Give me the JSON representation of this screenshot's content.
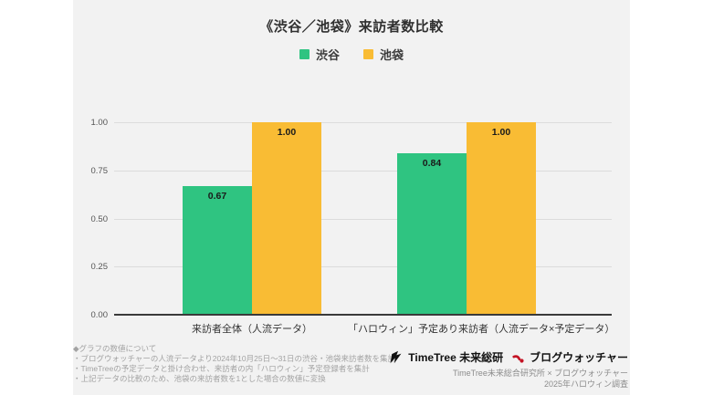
{
  "page": {
    "background": "#ffffff",
    "slide_background": "#f2f2f2"
  },
  "chart_data": {
    "type": "bar",
    "title": "《渋谷／池袋》来訪者数比較",
    "categories": [
      "来訪者全体（人流データ）",
      "「ハロウィン」予定あり来訪者（人流データ×予定データ）"
    ],
    "series": [
      {
        "name": "渋谷",
        "color": "#2fc481",
        "values": [
          0.67,
          0.84
        ],
        "labels": [
          "0.67",
          "0.84"
        ]
      },
      {
        "name": "池袋",
        "color": "#f9bc34",
        "values": [
          1.0,
          1.0
        ],
        "labels": [
          "1.00",
          "1.00"
        ]
      }
    ],
    "ylim": [
      0,
      1
    ],
    "y_ticks": [
      {
        "value": 0,
        "label": "0.00"
      },
      {
        "value": 0.25,
        "label": "0.25"
      },
      {
        "value": 0.5,
        "label": "0.50"
      },
      {
        "value": 0.75,
        "label": "0.75"
      },
      {
        "value": 1,
        "label": "1.00"
      }
    ],
    "grid": true,
    "legend_position": "top"
  },
  "notes": {
    "lines": [
      "◆グラフの数値について",
      "・ブログウォッチャーの人流データより2024年10月25日～31日の渋谷・池袋来訪者数を集計",
      "・TimeTreeの予定データと掛け合わせ、来訪者の内「ハロウィン」予定登録者を集計",
      "・上記データの比較のため、池袋の来訪者数を1とした場合の数値に変換"
    ]
  },
  "footer": {
    "timetree_logo_text": "TimeTree 未来総研",
    "blogwatcher_logo_text": "ブログウォッチャー",
    "blogwatcher_color": "#c41425",
    "credit_line1": "TimeTree未来総合研究所 × ブログウォッチャー",
    "credit_line2": "2025年ハロウィン調査"
  }
}
